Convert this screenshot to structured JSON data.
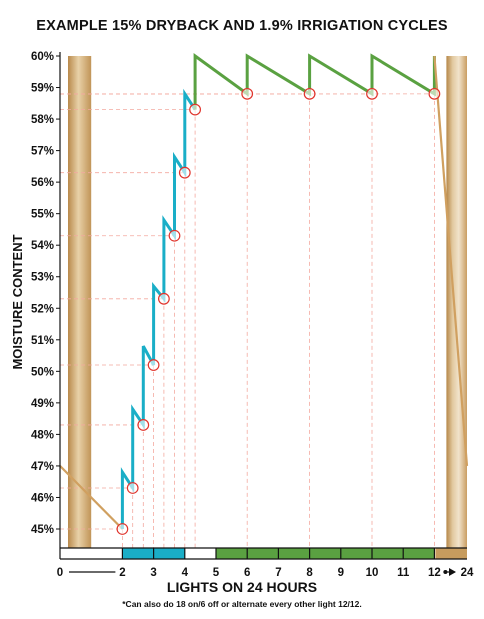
{
  "chart_data": {
    "type": "line",
    "title": "EXAMPLE 15% DRYBACK AND 1.9% IRRIGATION CYCLES",
    "xlabel": "LIGHTS ON 24 HOURS",
    "ylabel": "MOISTURE CONTENT",
    "footnote": "*Can also do 18 on/6 off or alternate every other light 12/12.",
    "ylim": [
      45,
      60
    ],
    "y_ticks": [
      "45%",
      "46%",
      "47%",
      "48%",
      "49%",
      "50%",
      "51%",
      "52%",
      "53%",
      "54%",
      "55%",
      "56%",
      "57%",
      "58%",
      "59%",
      "60%"
    ],
    "x_ticks": [
      "0",
      "2",
      "3",
      "4",
      "5",
      "6",
      "7",
      "8",
      "9",
      "10",
      "11",
      "12",
      "24"
    ],
    "dark_periods": [
      [
        0,
        1
      ],
      [
        12,
        24
      ]
    ],
    "phases": [
      {
        "range": [
          2,
          4
        ],
        "color": "#1aaec7"
      },
      {
        "range": [
          5,
          12
        ],
        "color": "#5aa141"
      }
    ],
    "series": [
      {
        "color": "#d0a060",
        "points": [
          [
            0,
            47.0
          ],
          [
            2,
            45.0
          ]
        ]
      },
      {
        "color": "#1aaec7",
        "points": [
          [
            2,
            45.0
          ],
          [
            2,
            46.8
          ],
          [
            2.33,
            46.3
          ],
          [
            2.33,
            48.8
          ],
          [
            2.67,
            48.3
          ],
          [
            2.67,
            50.8
          ],
          [
            3,
            50.2
          ],
          [
            3,
            52.7
          ],
          [
            3.33,
            52.3
          ],
          [
            3.33,
            54.8
          ],
          [
            3.67,
            54.3
          ],
          [
            3.67,
            56.8
          ],
          [
            4,
            56.3
          ],
          [
            4,
            58.8
          ],
          [
            4.33,
            58.3
          ]
        ]
      },
      {
        "color": "#5aa141",
        "points": [
          [
            4.33,
            58.3
          ],
          [
            4.33,
            60.0
          ],
          [
            6,
            58.8
          ],
          [
            6,
            60.0
          ],
          [
            8,
            58.8
          ],
          [
            8,
            60.0
          ],
          [
            10,
            58.8
          ],
          [
            10,
            60.0
          ],
          [
            12,
            58.8
          ],
          [
            12,
            60.0
          ]
        ]
      },
      {
        "color": "#d0a060",
        "points": [
          [
            12,
            60.0
          ],
          [
            24,
            47.0
          ]
        ]
      }
    ],
    "markers": [
      [
        2,
        45.0
      ],
      [
        2.33,
        46.3
      ],
      [
        2.67,
        48.3
      ],
      [
        3,
        50.2
      ],
      [
        3.33,
        52.3
      ],
      [
        3.67,
        54.3
      ],
      [
        4,
        56.3
      ],
      [
        4.33,
        58.3
      ],
      [
        6,
        58.8
      ],
      [
        8,
        58.8
      ],
      [
        10,
        58.8
      ],
      [
        12,
        58.8
      ]
    ],
    "grid": false
  }
}
